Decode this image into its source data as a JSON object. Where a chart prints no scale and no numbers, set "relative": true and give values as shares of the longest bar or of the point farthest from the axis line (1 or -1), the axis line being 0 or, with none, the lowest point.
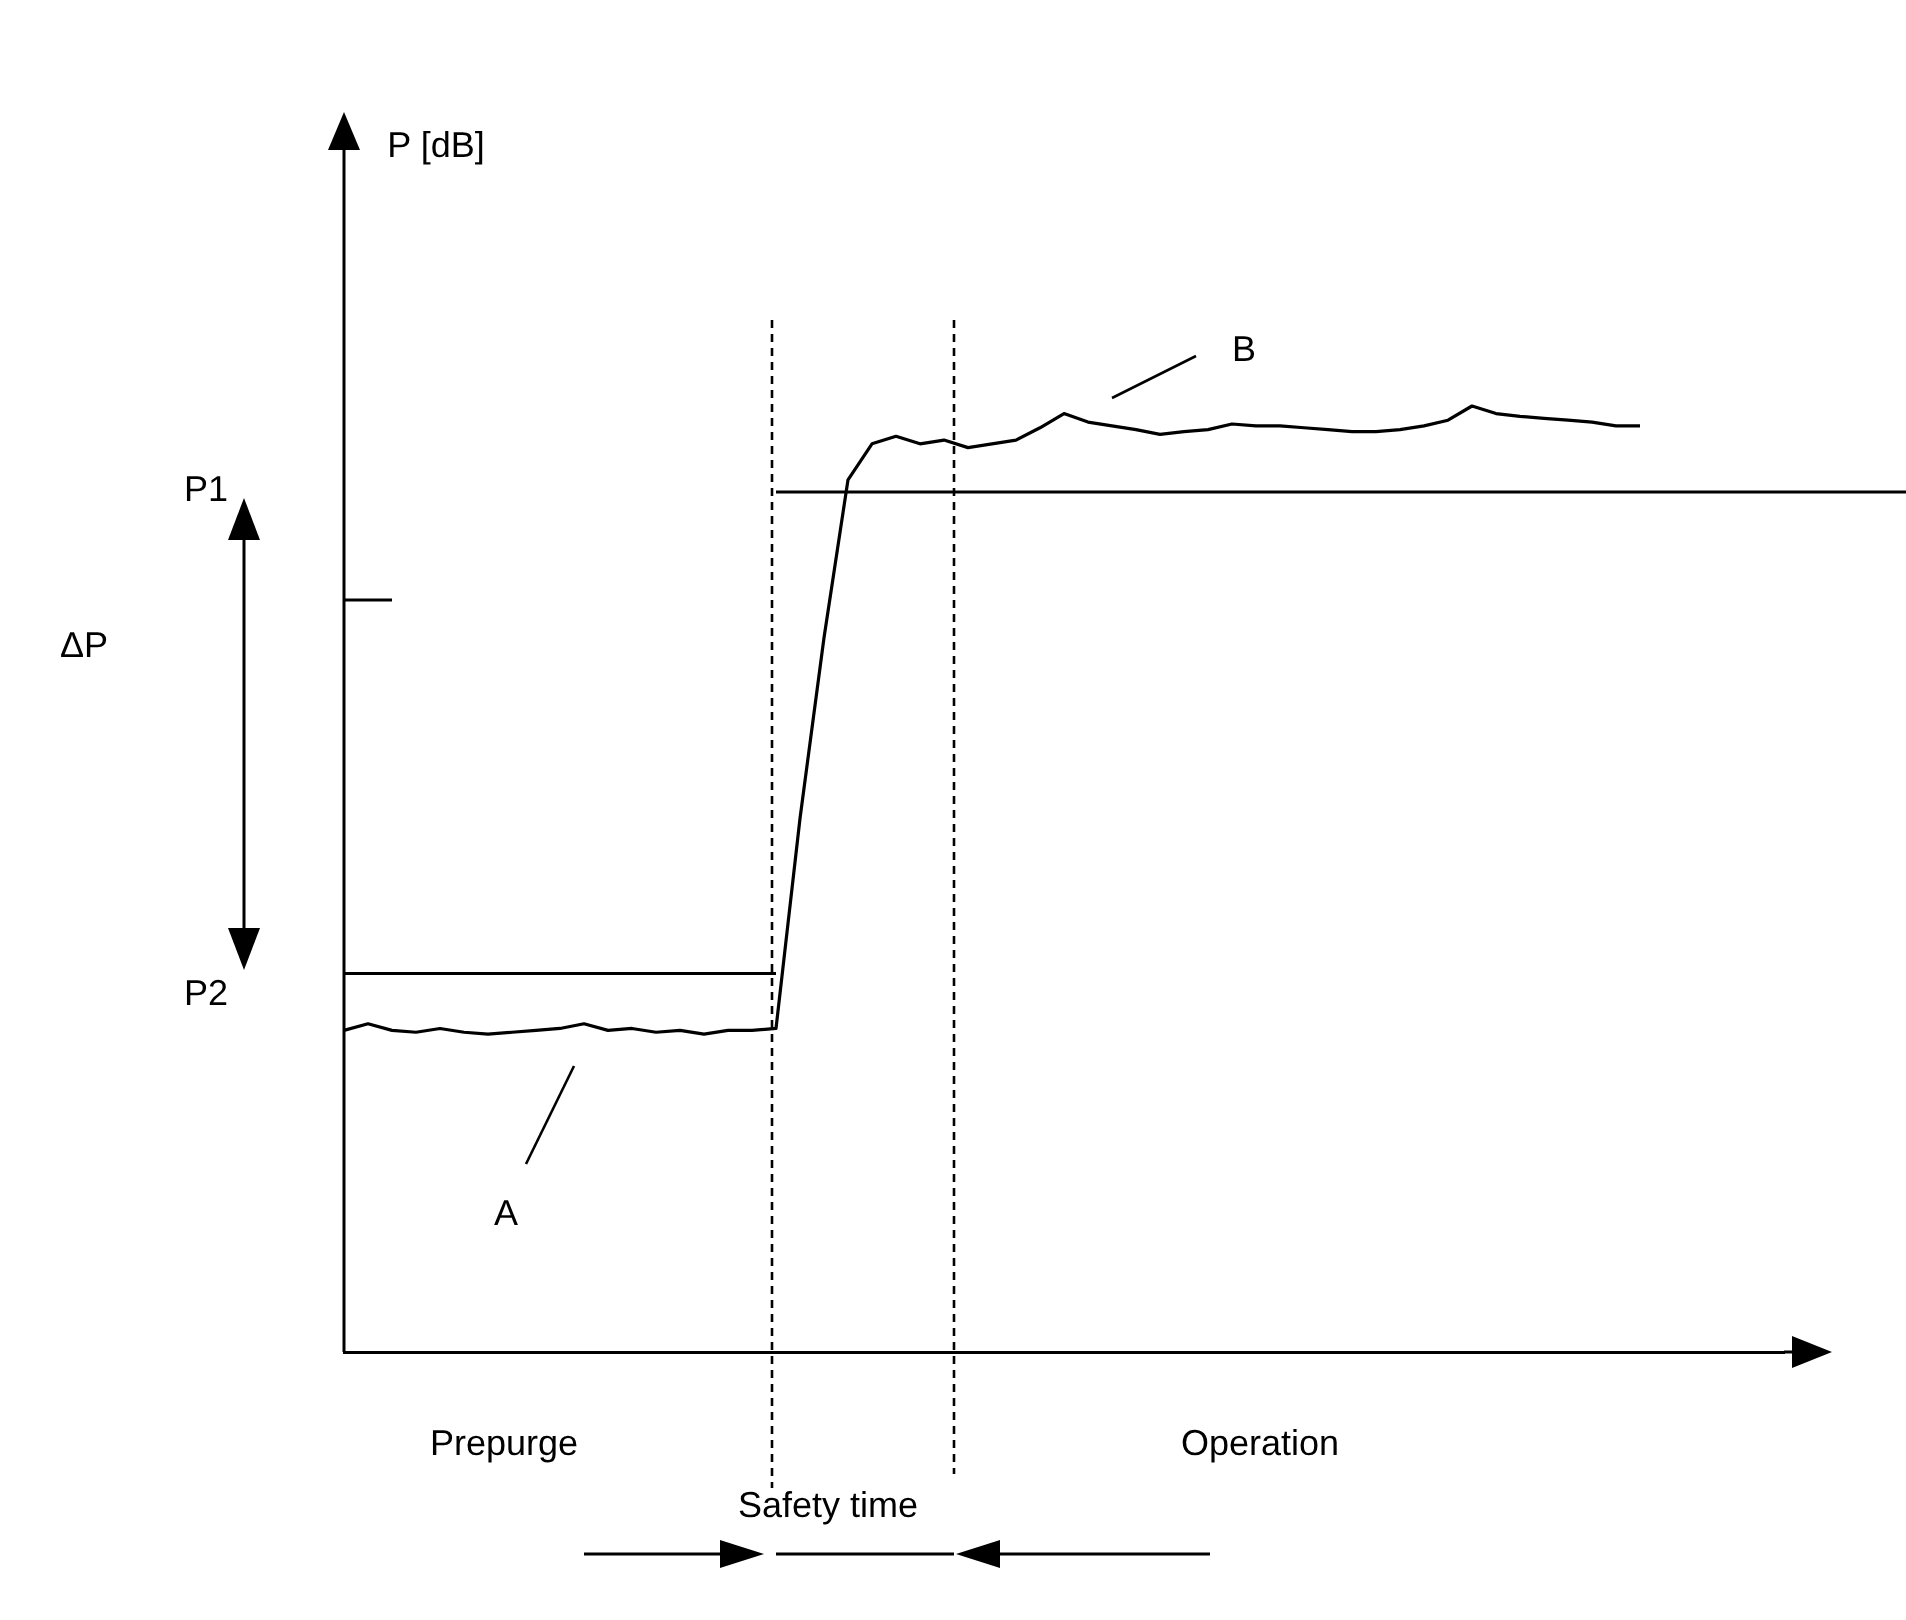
{
  "chart_data": {
    "type": "line",
    "relative": true,
    "tick_labels": false,
    "grid": false,
    "legend": false,
    "marker": "none",
    "line_style": "solid",
    "categories": [
      null,
      null,
      null,
      null,
      null,
      null,
      null,
      null,
      null,
      null,
      null,
      null,
      null,
      null,
      null,
      null,
      null,
      null,
      null,
      null,
      null,
      null,
      null,
      null,
      null,
      null,
      null,
      null,
      null,
      null,
      null,
      null,
      null,
      null,
      null,
      null,
      null,
      null,
      null,
      null,
      null,
      null,
      null,
      null,
      null,
      null,
      null,
      null,
      null,
      null,
      null,
      null,
      null,
      null,
      null,
      null,
      null,
      null,
      null,
      null,
      null
    ],
    "series": [
      {
        "color": "#000000",
        "values": [
          0.34,
          0.347,
          0.34,
          0.338,
          0.342,
          0.338,
          0.336,
          0.338,
          0.34,
          0.342,
          0.347,
          0.34,
          0.342,
          0.338,
          0.34,
          0.336,
          0.34,
          0.34,
          0.342,
          0.564,
          0.755,
          0.922,
          0.96,
          0.968,
          0.96,
          0.964,
          0.956,
          0.96,
          0.964,
          0.977,
          0.992,
          0.983,
          0.979,
          0.975,
          0.97,
          0.973,
          0.975,
          0.981,
          0.979,
          0.979,
          0.977,
          0.975,
          0.973,
          0.973,
          0.975,
          0.979,
          0.985,
          1,
          0.992,
          0.989,
          0.987,
          0.985,
          0.983,
          0.979,
          0.979,
          null,
          null,
          null,
          null,
          null,
          null
        ]
      }
    ],
    "ref_lines": [
      {
        "axis": "y",
        "value": 0.909,
        "color": "#000000"
      },
      {
        "axis": "y",
        "value": 0.4,
        "color": "#000000"
      }
    ],
    "annotations": [
      "P [dB]",
      "P1",
      "ΔP",
      "P2",
      "A",
      "B",
      "Prepurge",
      "Safety time",
      "Operation"
    ]
  }
}
